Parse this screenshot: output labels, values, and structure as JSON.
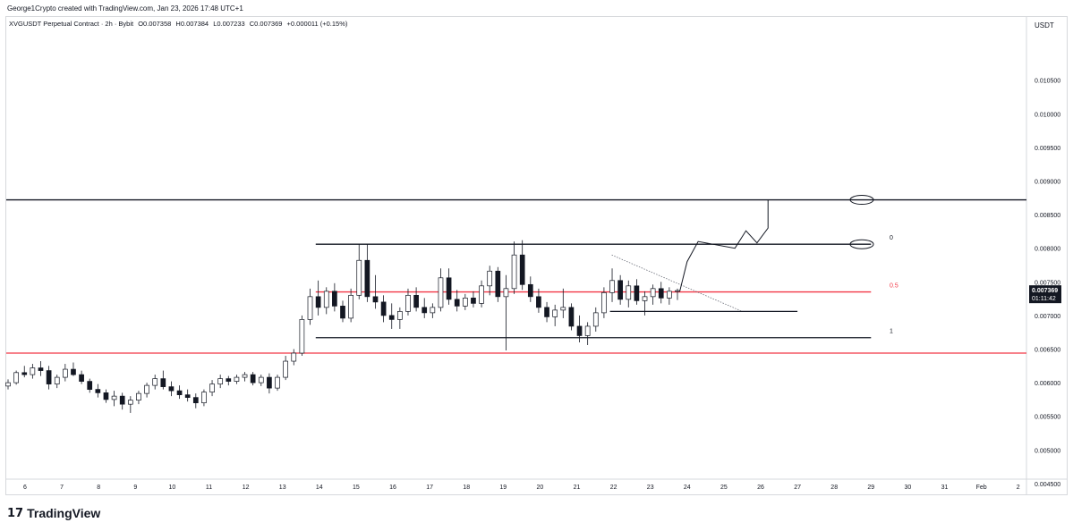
{
  "credit": "George1Crypto created with TradingView.com, Jan 23, 2026 17:48 UTC+1",
  "legend": {
    "symbol": "XVGUSDT Perpetual Contract · 2h · Bybit",
    "open": "O0.007358",
    "high": "H0.007384",
    "low": "L0.007233",
    "close": "C0.007369",
    "change": "+0.000011 (+0.15%)"
  },
  "currency": "USDT",
  "last_price": {
    "value": "0.007369",
    "countdown": "01:11:42",
    "color": "#131722"
  },
  "logo": {
    "icon_name": "tradingview-logo-icon",
    "text": "TradingView"
  },
  "chart_data": {
    "type": "candlestick",
    "timeframe": "2h",
    "x_axis": {
      "ticks": [
        "6",
        "7",
        "8",
        "9",
        "10",
        "11",
        "12",
        "13",
        "14",
        "15",
        "16",
        "17",
        "18",
        "19",
        "20",
        "21",
        "22",
        "23",
        "24",
        "25",
        "26",
        "27",
        "28",
        "29",
        "30",
        "31",
        "Feb",
        "2"
      ]
    },
    "y_axis": {
      "ticks": [
        "0.010500",
        "0.010000",
        "0.009500",
        "0.009000",
        "0.008500",
        "0.008000",
        "0.007500",
        "0.007000",
        "0.006500",
        "0.006000",
        "0.005500",
        "0.005000",
        "0.004500"
      ],
      "range": [
        0.0042,
        0.0112
      ]
    },
    "fib_labels": [
      "0",
      "0.5",
      "1"
    ],
    "levels": [
      {
        "price": 0.00872,
        "color": "#131722",
        "x_start": "Jan 6",
        "x_end": "Feb 2"
      },
      {
        "price": 0.00806,
        "color": "#131722",
        "x_start": "Jan 14",
        "x_end": "Jan 29"
      },
      {
        "price": 0.00735,
        "color": "#f23645",
        "x_start": "Jan 14",
        "x_end": "Jan 29"
      },
      {
        "price": 0.00706,
        "color": "#131722",
        "x_start": "Jan 22",
        "x_end": "Jan 27"
      },
      {
        "price": 0.00667,
        "color": "#131722",
        "x_start": "Jan 14",
        "x_end": "Jan 29"
      },
      {
        "price": 0.00644,
        "color": "#f23645",
        "x_start": "Jan 6",
        "x_end": "Feb 2"
      }
    ],
    "candle_color_up": "#131722",
    "candle_color_down": "#131722",
    "candles_ohlc_approx": [
      [
        0.00595,
        0.00605,
        0.0059,
        0.006
      ],
      [
        0.006,
        0.00618,
        0.00597,
        0.00615
      ],
      [
        0.00615,
        0.00625,
        0.00608,
        0.00612
      ],
      [
        0.00612,
        0.00628,
        0.00606,
        0.00622
      ],
      [
        0.00622,
        0.00632,
        0.0061,
        0.00618
      ],
      [
        0.00618,
        0.00625,
        0.0059,
        0.00598
      ],
      [
        0.00598,
        0.00612,
        0.00592,
        0.00608
      ],
      [
        0.00608,
        0.00628,
        0.00602,
        0.0062
      ],
      [
        0.0062,
        0.0063,
        0.0061,
        0.00612
      ],
      [
        0.00612,
        0.00618,
        0.00598,
        0.00602
      ],
      [
        0.00602,
        0.00606,
        0.00585,
        0.0059
      ],
      [
        0.0059,
        0.00598,
        0.00578,
        0.00585
      ],
      [
        0.00585,
        0.0059,
        0.0057,
        0.00575
      ],
      [
        0.00575,
        0.00588,
        0.00565,
        0.0058
      ],
      [
        0.0058,
        0.00585,
        0.0056,
        0.00568
      ],
      [
        0.00568,
        0.0058,
        0.00555,
        0.00574
      ],
      [
        0.00574,
        0.00588,
        0.00568,
        0.00584
      ],
      [
        0.00584,
        0.006,
        0.00578,
        0.00596
      ],
      [
        0.00596,
        0.00612,
        0.0059,
        0.00606
      ],
      [
        0.00606,
        0.00618,
        0.0059,
        0.00594
      ],
      [
        0.00594,
        0.00602,
        0.0058,
        0.00588
      ],
      [
        0.00588,
        0.00596,
        0.00576,
        0.00582
      ],
      [
        0.00582,
        0.0059,
        0.00572,
        0.00578
      ],
      [
        0.00578,
        0.00584,
        0.00562,
        0.0057
      ],
      [
        0.0057,
        0.0059,
        0.00565,
        0.00586
      ],
      [
        0.00586,
        0.00604,
        0.0058,
        0.00598
      ],
      [
        0.00598,
        0.00612,
        0.00592,
        0.00606
      ],
      [
        0.00606,
        0.0061,
        0.00596,
        0.00602
      ],
      [
        0.00602,
        0.00612,
        0.00598,
        0.00608
      ],
      [
        0.00608,
        0.00616,
        0.00602,
        0.00612
      ],
      [
        0.00612,
        0.00616,
        0.00596,
        0.006
      ],
      [
        0.006,
        0.00612,
        0.00595,
        0.00608
      ],
      [
        0.00608,
        0.00614,
        0.00584,
        0.00592
      ],
      [
        0.00592,
        0.00612,
        0.00588,
        0.00608
      ],
      [
        0.00608,
        0.0064,
        0.00604,
        0.00632
      ],
      [
        0.00632,
        0.0065,
        0.00626,
        0.00644
      ],
      [
        0.00644,
        0.007,
        0.0064,
        0.00694
      ],
      [
        0.00694,
        0.0074,
        0.00686,
        0.00728
      ],
      [
        0.00728,
        0.00752,
        0.007,
        0.00712
      ],
      [
        0.00712,
        0.00742,
        0.00702,
        0.00736
      ],
      [
        0.00736,
        0.00748,
        0.00706,
        0.00714
      ],
      [
        0.00714,
        0.00722,
        0.0069,
        0.00696
      ],
      [
        0.00696,
        0.0074,
        0.0069,
        0.0073
      ],
      [
        0.0073,
        0.00806,
        0.00724,
        0.00782
      ],
      [
        0.00782,
        0.00806,
        0.0072,
        0.00728
      ],
      [
        0.00728,
        0.0076,
        0.0071,
        0.0072
      ],
      [
        0.0072,
        0.0073,
        0.0069,
        0.007
      ],
      [
        0.007,
        0.00718,
        0.0068,
        0.00694
      ],
      [
        0.00694,
        0.00712,
        0.0068,
        0.00706
      ],
      [
        0.00706,
        0.0074,
        0.007,
        0.0073
      ],
      [
        0.0073,
        0.00742,
        0.00706,
        0.00712
      ],
      [
        0.00712,
        0.00726,
        0.00696,
        0.00704
      ],
      [
        0.00704,
        0.00718,
        0.00696,
        0.00712
      ],
      [
        0.00712,
        0.0077,
        0.00706,
        0.00756
      ],
      [
        0.00756,
        0.0077,
        0.00716,
        0.00724
      ],
      [
        0.00724,
        0.00738,
        0.00706,
        0.00714
      ],
      [
        0.00714,
        0.00732,
        0.00708,
        0.00726
      ],
      [
        0.00726,
        0.00736,
        0.00712,
        0.00718
      ],
      [
        0.00718,
        0.00752,
        0.00712,
        0.00744
      ],
      [
        0.00744,
        0.00774,
        0.0073,
        0.00766
      ],
      [
        0.00766,
        0.00772,
        0.0072,
        0.00728
      ],
      [
        0.00728,
        0.0076,
        0.00648,
        0.0074
      ],
      [
        0.0074,
        0.0081,
        0.00732,
        0.0079
      ],
      [
        0.0079,
        0.00812,
        0.00738,
        0.00746
      ],
      [
        0.00746,
        0.00758,
        0.0072,
        0.00728
      ],
      [
        0.00728,
        0.0074,
        0.00704,
        0.00712
      ],
      [
        0.00712,
        0.0072,
        0.0069,
        0.00698
      ],
      [
        0.00698,
        0.00716,
        0.00684,
        0.00708
      ],
      [
        0.00708,
        0.0074,
        0.00696,
        0.00712
      ],
      [
        0.00712,
        0.00718,
        0.00678,
        0.00684
      ],
      [
        0.00684,
        0.007,
        0.0066,
        0.0067
      ],
      [
        0.0067,
        0.0069,
        0.00656,
        0.00684
      ],
      [
        0.00684,
        0.00712,
        0.00676,
        0.00704
      ],
      [
        0.00704,
        0.00742,
        0.00696,
        0.00734
      ],
      [
        0.00734,
        0.0077,
        0.0072,
        0.00752
      ],
      [
        0.00752,
        0.0076,
        0.00716,
        0.00724
      ],
      [
        0.00724,
        0.00752,
        0.00712,
        0.00744
      ],
      [
        0.00744,
        0.00754,
        0.00716,
        0.00722
      ],
      [
        0.00722,
        0.00736,
        0.007,
        0.00728
      ],
      [
        0.00728,
        0.00746,
        0.00716,
        0.0074
      ],
      [
        0.0074,
        0.0075,
        0.00718,
        0.00726
      ],
      [
        0.00726,
        0.00742,
        0.00716,
        0.00736
      ],
      [
        0.00736,
        0.0074,
        0.00723,
        0.00737
      ]
    ],
    "projection_path": [
      [
        "Jan 23.8",
        0.00736
      ],
      [
        "Jan 24.0",
        0.0078
      ],
      [
        "Jan 24.3",
        0.0081
      ],
      [
        "Jan 25.3",
        0.008
      ],
      [
        "Jan 25.6",
        0.00826
      ],
      [
        "Jan 25.9",
        0.00808
      ],
      [
        "Jan 26.2",
        0.0083
      ],
      [
        "Jan 26.2",
        0.00872
      ]
    ],
    "trendline_dotted": [
      [
        "Jan 22",
        0.0079
      ],
      [
        "Jan 25.5",
        0.00706
      ]
    ]
  }
}
